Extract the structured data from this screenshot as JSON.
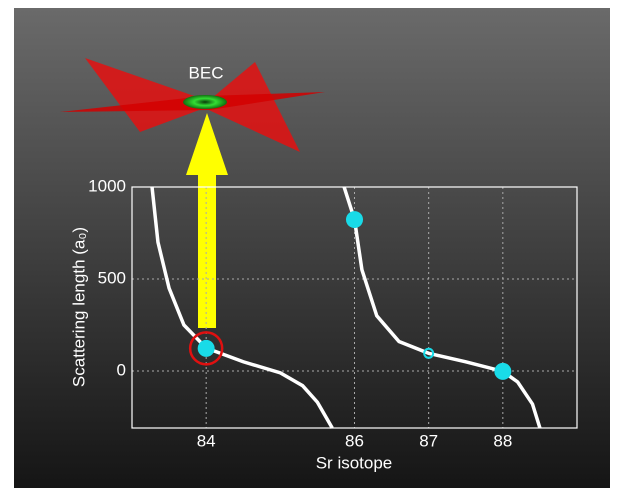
{
  "chart_data": {
    "type": "scatter",
    "illustration_label": "BEC",
    "xlabel": "Sr isotope",
    "ylabel": "Scattering length (a₀)",
    "xlim": [
      83,
      89
    ],
    "ylim": [
      -310,
      1000
    ],
    "xticks": [
      84,
      86,
      87,
      88
    ],
    "yticks": [
      0,
      500,
      1000
    ],
    "grid": true,
    "points": {
      "color": "#19dbe8",
      "x": [
        84,
        86,
        87,
        88
      ],
      "values": [
        123,
        823,
        96,
        -2
      ],
      "hollow": [
        false,
        false,
        true,
        false
      ],
      "highlighted": [
        true,
        false,
        false,
        false
      ]
    },
    "curves": [
      {
        "color": "#ffffff",
        "x": [
          83.27,
          83.35,
          83.5,
          83.7,
          84,
          84.5,
          85,
          85.3,
          85.5,
          85.7
        ],
        "values": [
          1000,
          700,
          450,
          250,
          125,
          50,
          -10,
          -80,
          -170,
          -310
        ]
      },
      {
        "color": "#ffffff",
        "x": [
          85.86,
          86,
          86.1,
          86.3,
          86.6,
          87,
          87.5,
          88,
          88.2,
          88.4,
          88.5
        ],
        "values": [
          1000,
          823,
          550,
          300,
          160,
          96,
          50,
          -2,
          -60,
          -180,
          -310
        ]
      }
    ]
  }
}
